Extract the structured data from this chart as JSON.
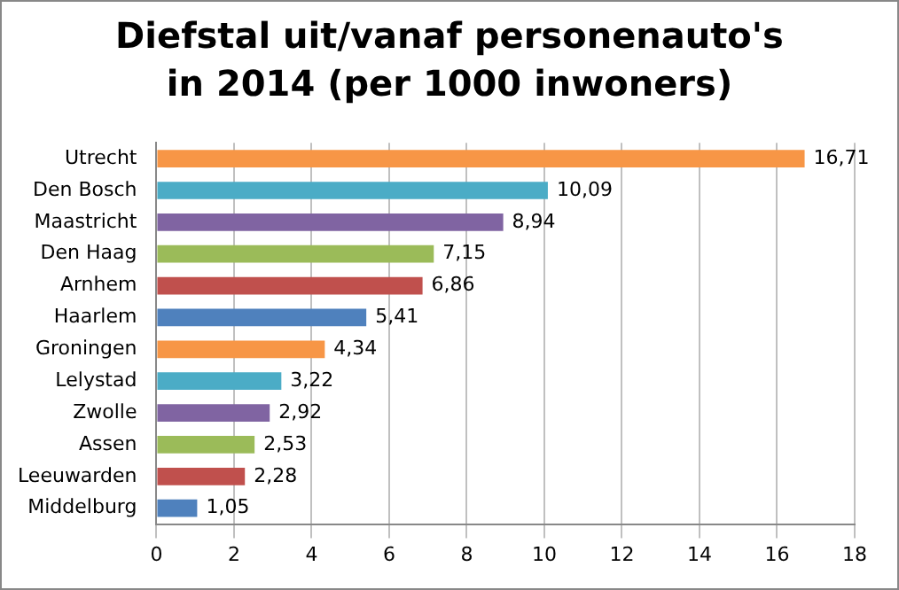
{
  "chart_data": {
    "type": "bar",
    "orientation": "horizontal",
    "title": "Diefstal uit/vanaf personenauto's in 2014 (per 1000 inwoners)",
    "categories": [
      "Utrecht",
      "Den Bosch",
      "Maastricht",
      "Den Haag",
      "Arnhem",
      "Haarlem",
      "Groningen",
      "Lelystad",
      "Zwolle",
      "Assen",
      "Leeuwarden",
      "Middelburg"
    ],
    "values": [
      16.71,
      10.09,
      8.94,
      7.15,
      6.86,
      5.41,
      4.34,
      3.22,
      2.92,
      2.53,
      2.28,
      1.05
    ],
    "colors": [
      "#f79646",
      "#4bacc6",
      "#8064a2",
      "#9bbb59",
      "#c0504d",
      "#4f81bd",
      "#f79646",
      "#4bacc6",
      "#8064a2",
      "#9bbb59",
      "#c0504d",
      "#4f81bd"
    ],
    "value_labels": [
      "16,71",
      "10,09",
      "8,94",
      "7,15",
      "6,86",
      "5,41",
      "4,34",
      "3,22",
      "2,92",
      "2,53",
      "2,28",
      "1,05"
    ],
    "xlim": [
      0,
      18
    ],
    "xticks": [
      0,
      2,
      4,
      6,
      8,
      10,
      12,
      14,
      16,
      18
    ],
    "grid": "x"
  }
}
